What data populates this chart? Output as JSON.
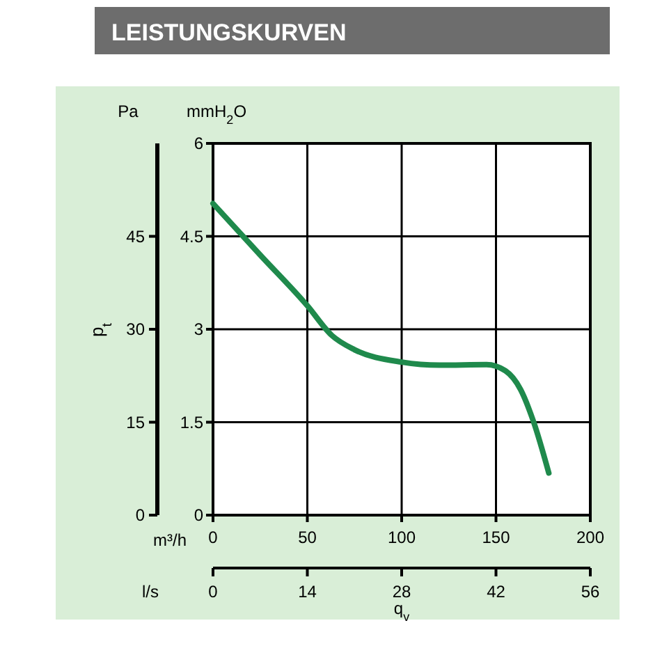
{
  "chart_data": {
    "type": "line",
    "title": "LEISTUNGSKURVEN",
    "xlabel": "m³/h",
    "x2label": "l/s",
    "ylabel": "mmH$_{2}$O",
    "y2label": "Pa",
    "annotations": [
      "p$_{t}$",
      "q$_{v}$"
    ],
    "x": [
      0,
      25,
      50,
      63,
      75,
      100,
      120,
      145,
      155,
      163,
      170,
      178
    ],
    "series": [
      {
        "color": "#1f8a4c",
        "values": [
          5.03,
          4.2,
          3.38,
          2.9,
          2.67,
          2.47,
          2.42,
          2.43,
          2.33,
          2.03,
          1.5,
          0.68
        ]
      }
    ],
    "xlim": [
      0,
      200
    ],
    "xticks": [
      0,
      50,
      100,
      150,
      200
    ],
    "x2lim": [
      0,
      56
    ],
    "x2ticks": [
      0,
      14,
      28,
      42,
      56
    ],
    "ylim": [
      0,
      6
    ],
    "yticks": [
      0,
      1.5,
      3,
      4.5,
      6
    ],
    "y2lim": [
      0,
      60
    ],
    "y2ticks": [
      0,
      15,
      30,
      45
    ],
    "grid": true
  }
}
